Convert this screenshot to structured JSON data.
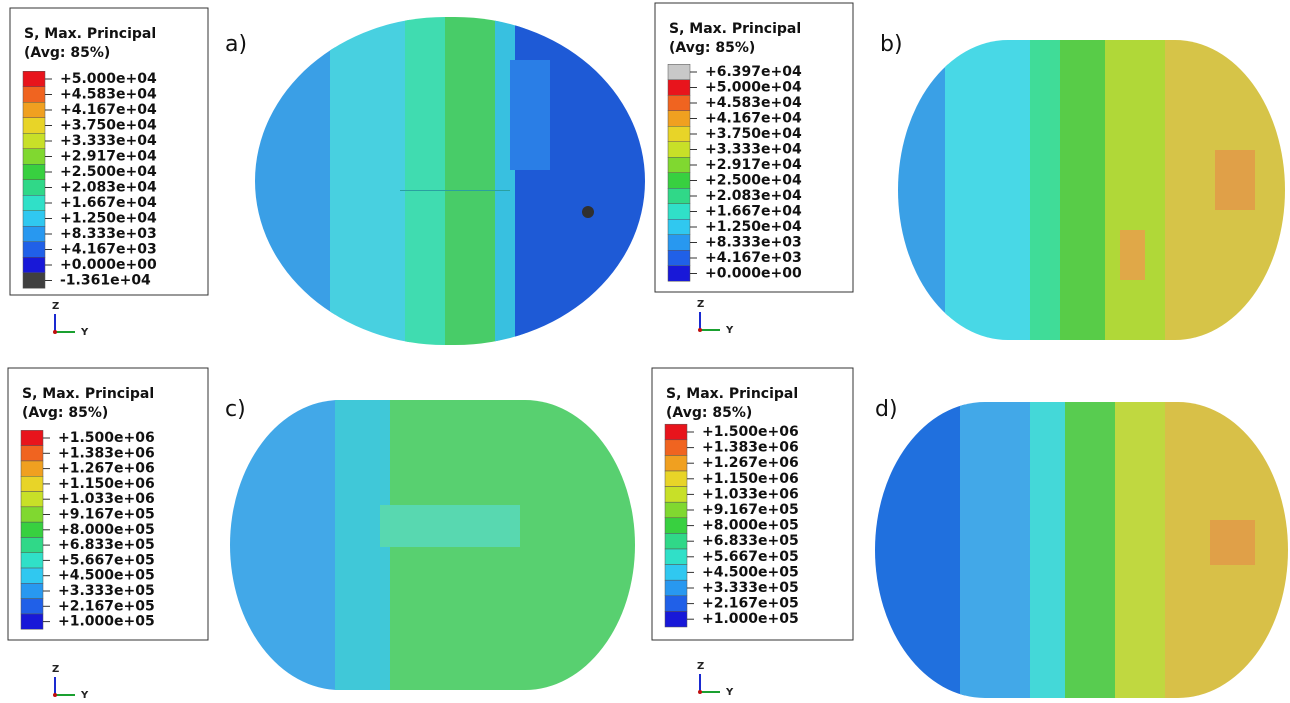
{
  "panels": [
    {
      "letter": "a)",
      "legend": {
        "title": "S, Max. Principal",
        "subtitle": "(Avg: 85%)",
        "entries": [
          {
            "label": "+5.000e+04",
            "color": "#e8141c"
          },
          {
            "label": "+4.583e+04",
            "color": "#f06420"
          },
          {
            "label": "+4.167e+04",
            "color": "#f0a020"
          },
          {
            "label": "+3.750e+04",
            "color": "#e8d428"
          },
          {
            "label": "+3.333e+04",
            "color": "#c8e028"
          },
          {
            "label": "+2.917e+04",
            "color": "#80d830"
          },
          {
            "label": "+2.500e+04",
            "color": "#38d040"
          },
          {
            "label": "+2.083e+04",
            "color": "#30d888"
          },
          {
            "label": "+1.667e+04",
            "color": "#30e0c8"
          },
          {
            "label": "+1.250e+04",
            "color": "#30c8f0"
          },
          {
            "label": "+8.333e+03",
            "color": "#2898f0"
          },
          {
            "label": "+4.167e+03",
            "color": "#2060e8"
          },
          {
            "label": "+0.000e+00",
            "color": "#1818d8"
          },
          {
            "label": "-1.361e+04",
            "color": "#404040"
          }
        ]
      },
      "axis_z": "Z",
      "axis_y": "Y"
    },
    {
      "letter": "b)",
      "legend": {
        "title": "S, Max. Principal",
        "subtitle": "(Avg: 85%)",
        "entries": [
          {
            "label": "+6.397e+04",
            "color": "#c8c8c8"
          },
          {
            "label": "+5.000e+04",
            "color": "#e8141c"
          },
          {
            "label": "+4.583e+04",
            "color": "#f06420"
          },
          {
            "label": "+4.167e+04",
            "color": "#f0a020"
          },
          {
            "label": "+3.750e+04",
            "color": "#e8d428"
          },
          {
            "label": "+3.333e+04",
            "color": "#c8e028"
          },
          {
            "label": "+2.917e+04",
            "color": "#80d830"
          },
          {
            "label": "+2.500e+04",
            "color": "#38d040"
          },
          {
            "label": "+2.083e+04",
            "color": "#30d888"
          },
          {
            "label": "+1.667e+04",
            "color": "#30e0c8"
          },
          {
            "label": "+1.250e+04",
            "color": "#30c8f0"
          },
          {
            "label": "+8.333e+03",
            "color": "#2898f0"
          },
          {
            "label": "+4.167e+03",
            "color": "#2060e8"
          },
          {
            "label": "+0.000e+00",
            "color": "#1818d8"
          }
        ]
      },
      "axis_z": "Z",
      "axis_y": "Y"
    },
    {
      "letter": "c)",
      "legend": {
        "title": "S, Max. Principal",
        "subtitle": "(Avg: 85%)",
        "entries": [
          {
            "label": "+1.500e+06",
            "color": "#e8141c"
          },
          {
            "label": "+1.383e+06",
            "color": "#f06420"
          },
          {
            "label": "+1.267e+06",
            "color": "#f0a020"
          },
          {
            "label": "+1.150e+06",
            "color": "#e8d428"
          },
          {
            "label": "+1.033e+06",
            "color": "#c8e028"
          },
          {
            "label": "+9.167e+05",
            "color": "#80d830"
          },
          {
            "label": "+8.000e+05",
            "color": "#38d040"
          },
          {
            "label": "+6.833e+05",
            "color": "#30d888"
          },
          {
            "label": "+5.667e+05",
            "color": "#30e0c8"
          },
          {
            "label": "+4.500e+05",
            "color": "#30c8f0"
          },
          {
            "label": "+3.333e+05",
            "color": "#2898f0"
          },
          {
            "label": "+2.167e+05",
            "color": "#2060e8"
          },
          {
            "label": "+1.000e+05",
            "color": "#1818d8"
          }
        ]
      },
      "axis_z": "Z",
      "axis_y": "Y"
    },
    {
      "letter": "d)",
      "legend": {
        "title": "S, Max. Principal",
        "subtitle": "(Avg: 85%)",
        "entries": [
          {
            "label": "+1.500e+06",
            "color": "#e8141c"
          },
          {
            "label": "+1.383e+06",
            "color": "#f06420"
          },
          {
            "label": "+1.267e+06",
            "color": "#f0a020"
          },
          {
            "label": "+1.150e+06",
            "color": "#e8d428"
          },
          {
            "label": "+1.033e+06",
            "color": "#c8e028"
          },
          {
            "label": "+9.167e+05",
            "color": "#80d830"
          },
          {
            "label": "+8.000e+05",
            "color": "#38d040"
          },
          {
            "label": "+6.833e+05",
            "color": "#30d888"
          },
          {
            "label": "+5.667e+05",
            "color": "#30e0c8"
          },
          {
            "label": "+4.500e+05",
            "color": "#30c8f0"
          },
          {
            "label": "+3.333e+05",
            "color": "#2898f0"
          },
          {
            "label": "+2.167e+05",
            "color": "#2060e8"
          },
          {
            "label": "+1.000e+05",
            "color": "#1818d8"
          }
        ]
      },
      "axis_z": "Z",
      "axis_y": "Y"
    }
  ]
}
